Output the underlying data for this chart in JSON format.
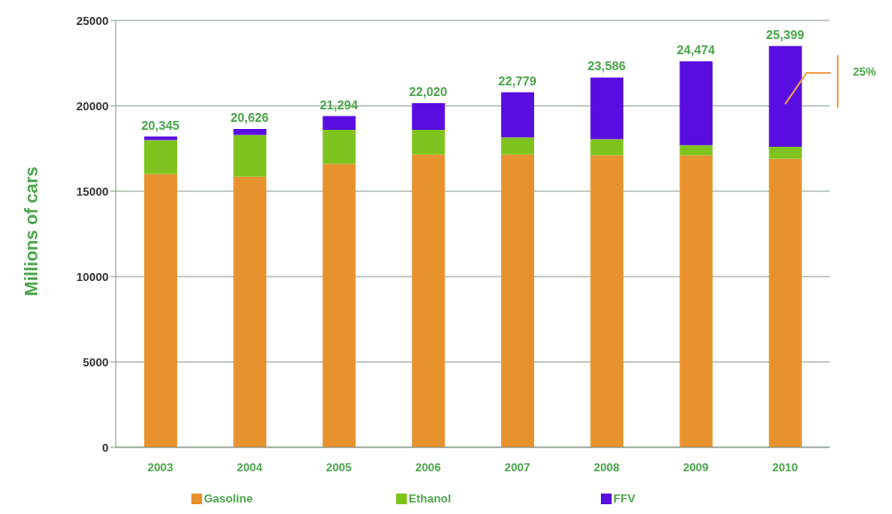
{
  "chart_data": {
    "type": "bar",
    "stacked": true,
    "ylabel": "Millions of cars",
    "categories": [
      "2003",
      "2004",
      "2005",
      "2006",
      "2007",
      "2008",
      "2009",
      "2010"
    ],
    "series": [
      {
        "name": "Gasoline",
        "color": "#e8922e",
        "values": [
          16000,
          15850,
          16600,
          17150,
          17150,
          17100,
          17100,
          16900
        ]
      },
      {
        "name": "Ethanol",
        "color": "#7fc41e",
        "values": [
          2000,
          2450,
          2000,
          1450,
          1000,
          950,
          600,
          700
        ]
      },
      {
        "name": "FFV",
        "color": "#5a0de0",
        "values": [
          200,
          350,
          800,
          1550,
          2650,
          3600,
          4900,
          5900
        ]
      }
    ],
    "ylim": [
      0,
      25000
    ],
    "yticks": [
      0,
      5000,
      10000,
      15000,
      20000,
      25000
    ],
    "grid": "y",
    "legend": "bottom",
    "annotations": [
      "25%",
      {
        "text": "20,345",
        "x": "2003",
        "y": 18200
      },
      {
        "text": "20,626",
        "x": "2004",
        "y": 18650
      },
      {
        "text": "21,294",
        "x": "2005",
        "y": 19400
      },
      {
        "text": "22,020",
        "x": "2006",
        "y": 20150
      },
      {
        "text": "22,779",
        "x": "2007",
        "y": 20800
      },
      {
        "text": "23,586",
        "x": "2008",
        "y": 21650
      },
      {
        "text": "24,474",
        "x": "2009",
        "y": 22600
      },
      {
        "text": "25,399",
        "x": "2010",
        "y": 23500
      }
    ]
  }
}
